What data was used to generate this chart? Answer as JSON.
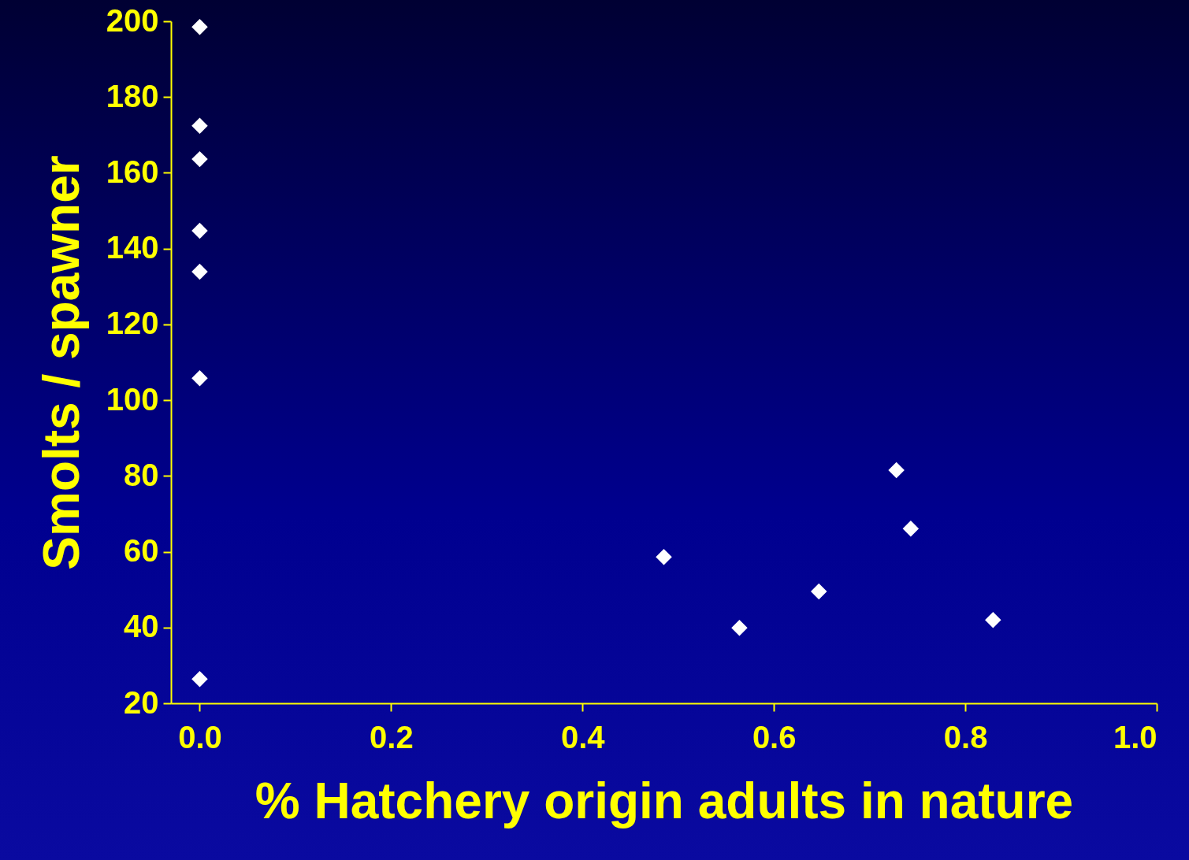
{
  "chart_data": {
    "type": "scatter",
    "xlabel": "% Hatchery origin adults in nature",
    "ylabel": "Smolts / spawner",
    "x": [
      0,
      0,
      0,
      0,
      0,
      0,
      0,
      0.485,
      0.564,
      0.647,
      0.728,
      0.743,
      0.829
    ],
    "series": [
      {
        "color": "#ffffff",
        "values": [
          198.5,
          172.4,
          163.6,
          144.7,
          133.9,
          105.8,
          26.4,
          58.6,
          39.9,
          49.5,
          81.5,
          66.1,
          42
        ]
      }
    ],
    "xlim": [
      -0.03,
      1.0
    ],
    "xticks": [
      {
        "value": 0,
        "label": "0.0"
      },
      0.2,
      0.4,
      0.6,
      0.8,
      {
        "value": 1,
        "label": "1.0"
      }
    ],
    "ylim": [
      20,
      200
    ],
    "yticks": [
      20,
      40,
      60,
      80,
      100,
      120,
      140,
      160,
      180,
      200
    ],
    "marker": "diamond",
    "grid": false,
    "legend": false
  }
}
